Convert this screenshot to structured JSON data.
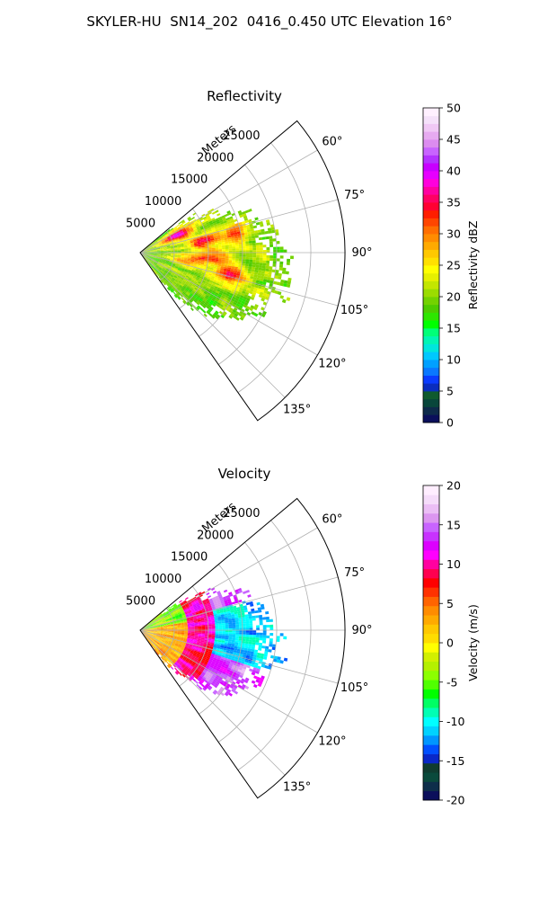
{
  "figure_title": "SKYLER-HU  SN14_202  0416_0.450 UTC Elevation 16°",
  "chart_data": [
    {
      "type": "heatmap",
      "projection": "polar-sector",
      "title": "Reflectivity",
      "range_label": "Meters",
      "range_ticks": [
        "5000",
        "10000",
        "15000",
        "20000",
        "25000"
      ],
      "range_values": [
        5000,
        10000,
        15000,
        20000,
        25000
      ],
      "range_max": 30000,
      "azimuth_ticks": [
        "60°",
        "75°",
        "90°",
        "105°",
        "120°",
        "135°"
      ],
      "azimuth_values": [
        60,
        75,
        90,
        105,
        120,
        135
      ],
      "azimuth_range": [
        50,
        145
      ],
      "grid": true,
      "colorbar": {
        "label": "Reflectivity dBZ",
        "vmin": 0,
        "vmax": 50,
        "ticks": [
          "0",
          "5",
          "10",
          "15",
          "20",
          "25",
          "30",
          "35",
          "40",
          "45",
          "50"
        ],
        "colormap": "NWS-reflectivity"
      }
    },
    {
      "type": "heatmap",
      "projection": "polar-sector",
      "title": "Velocity",
      "range_label": "Meters",
      "range_ticks": [
        "5000",
        "10000",
        "15000",
        "20000",
        "25000"
      ],
      "range_values": [
        5000,
        10000,
        15000,
        20000,
        25000
      ],
      "range_max": 30000,
      "azimuth_ticks": [
        "60°",
        "75°",
        "90°",
        "105°",
        "120°",
        "135°"
      ],
      "azimuth_values": [
        60,
        75,
        90,
        105,
        120,
        135
      ],
      "azimuth_range": [
        50,
        145
      ],
      "grid": true,
      "colorbar": {
        "label": "Velocity (m/s)",
        "vmin": -20,
        "vmax": 20,
        "ticks": [
          "-20",
          "-15",
          "-10",
          "-5",
          "0",
          "5",
          "10",
          "15",
          "20"
        ],
        "colormap": "NWS-velocity"
      }
    }
  ]
}
